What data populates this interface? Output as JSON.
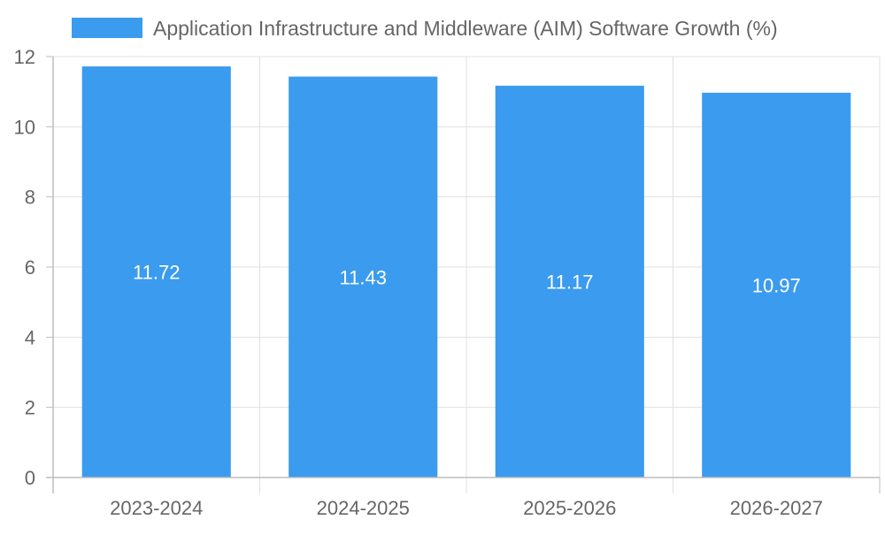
{
  "colors": {
    "bar": "#3a9bef",
    "grid": "#e0e0e0",
    "axis": "#bdbdbd",
    "tick_text": "#666666",
    "data_label_text": "#ffffff"
  },
  "chart_data": {
    "type": "bar",
    "legend_position": "top",
    "grid": true,
    "categories": [
      "2023-2024",
      "2024-2025",
      "2025-2026",
      "2026-2027"
    ],
    "series": [
      {
        "name": "Application Infrastructure and Middleware (AIM) Software Growth (%)",
        "values": [
          11.72,
          11.43,
          11.17,
          10.97
        ]
      }
    ],
    "data_labels": [
      "11.72",
      "11.43",
      "11.17",
      "10.97"
    ],
    "ylim": [
      0,
      12
    ],
    "y_ticks": [
      0,
      2,
      4,
      6,
      8,
      10,
      12
    ],
    "y_tick_labels": [
      "0",
      "2",
      "4",
      "6",
      "8",
      "10",
      "12"
    ]
  }
}
